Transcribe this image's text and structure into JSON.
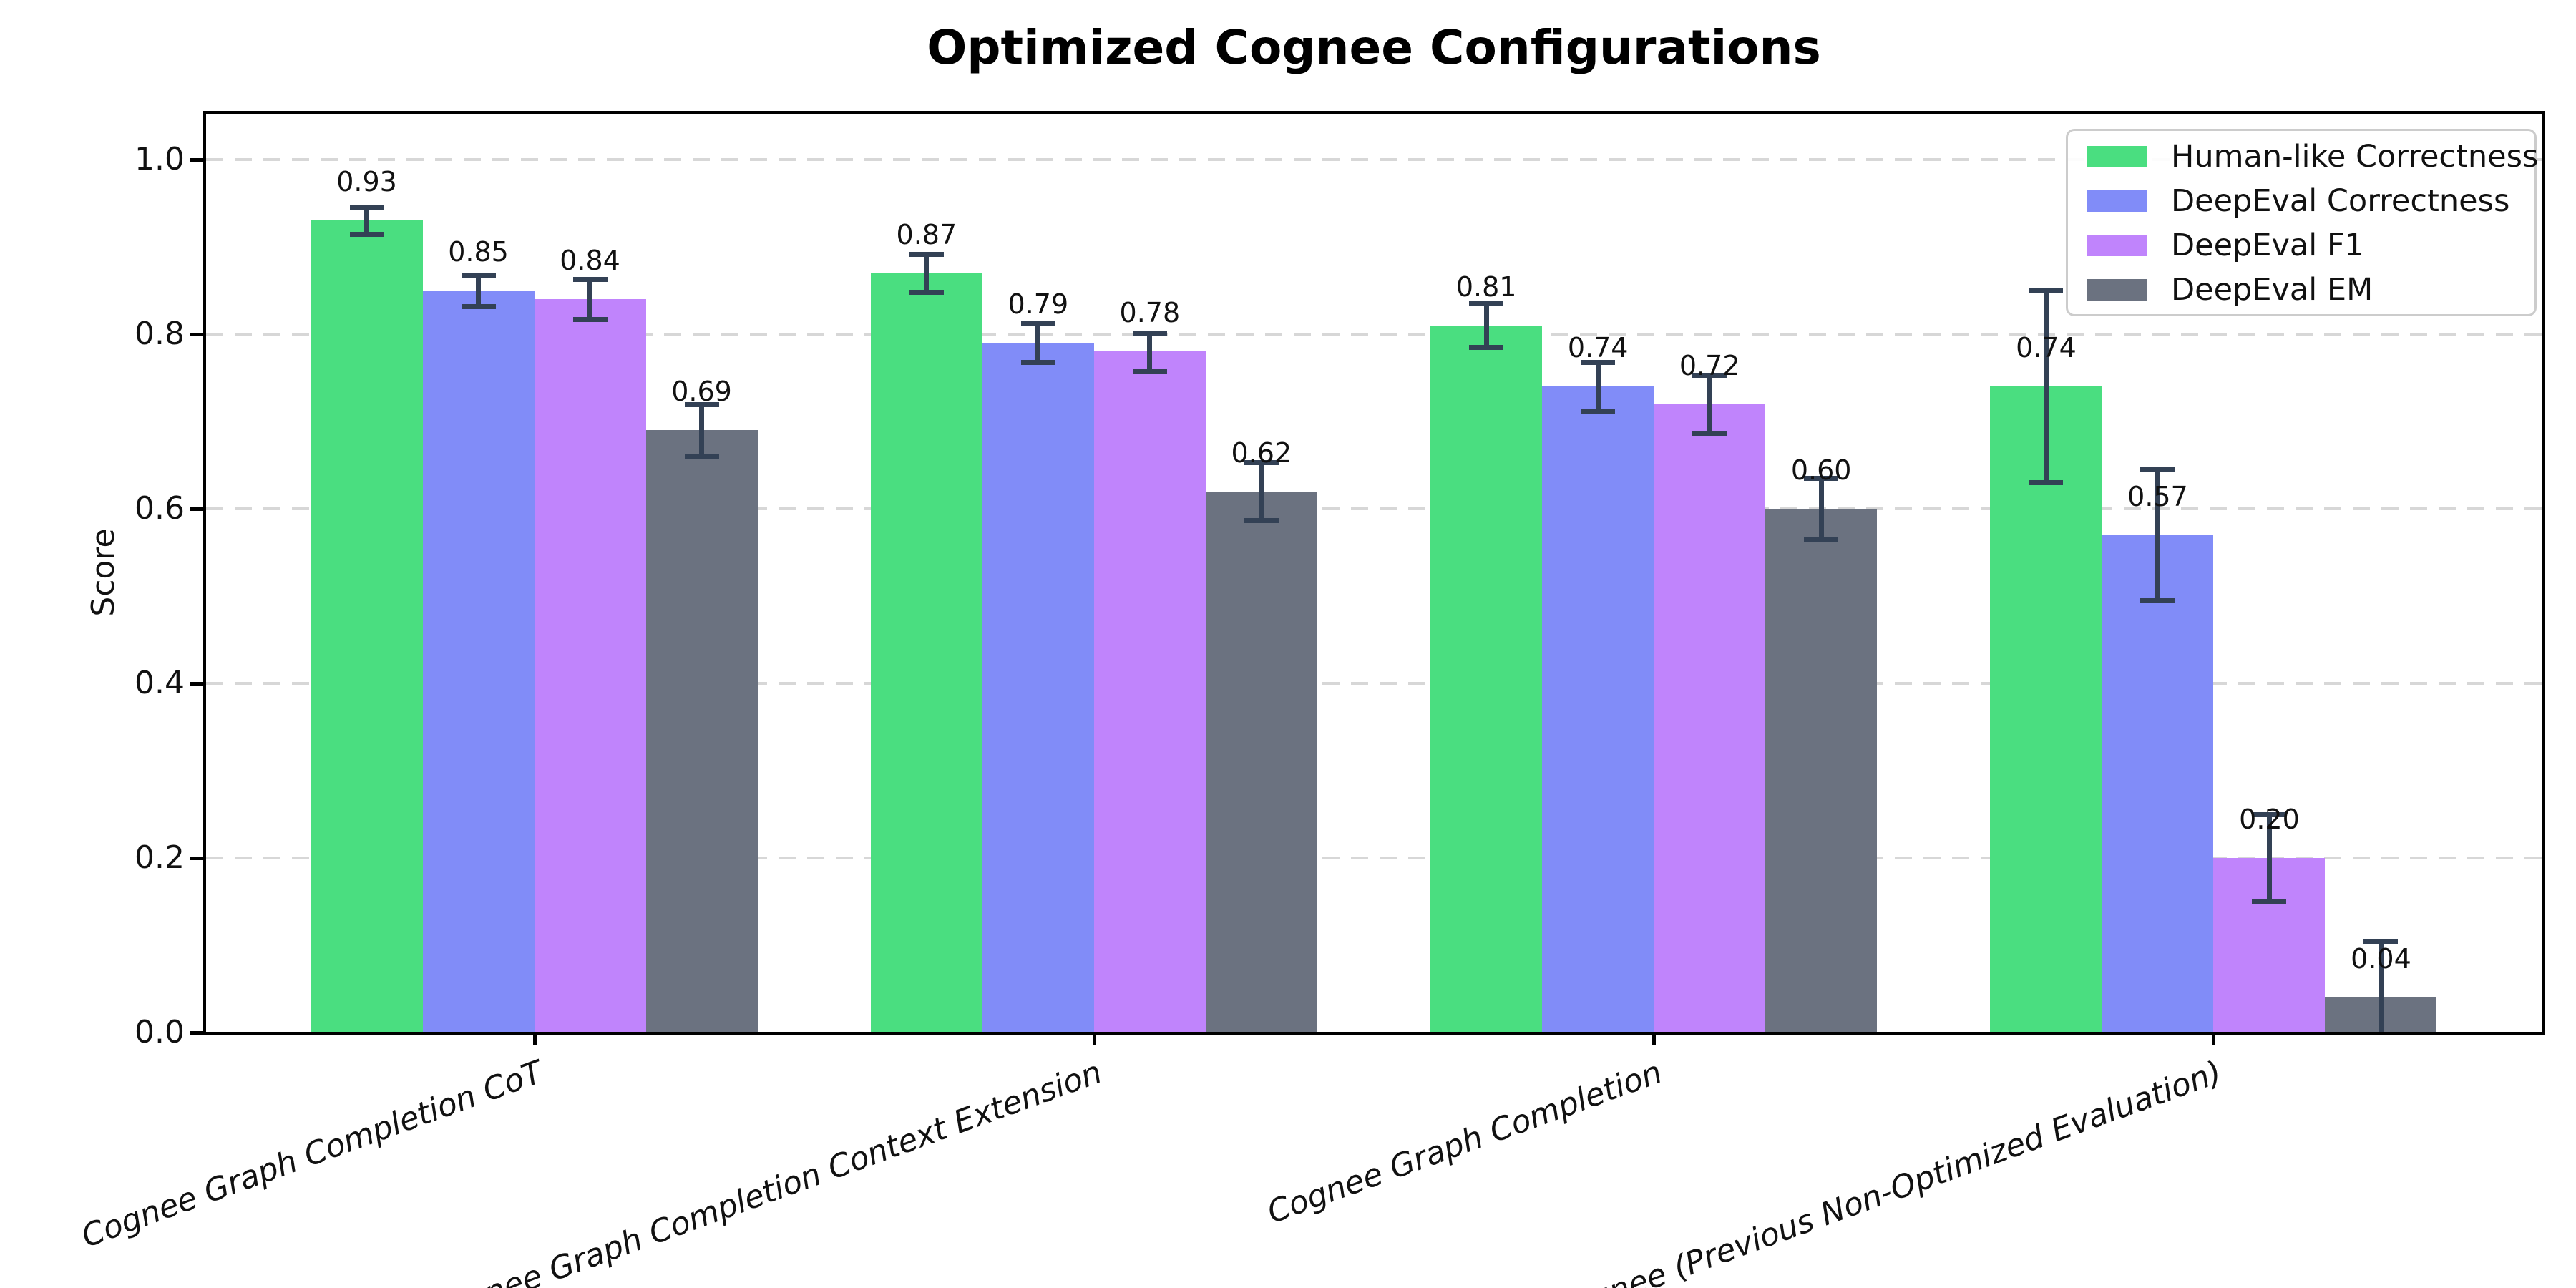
{
  "chart_data": {
    "type": "bar",
    "title": "Optimized Cognee Configurations",
    "ylabel": "Score",
    "xlabel": "",
    "categories": [
      "Cognee Graph Completion CoT",
      "Cognee Graph Completion Context Extension",
      "Cognee Graph Completion",
      "Cognee (Previous Non-Optimized Evaluation)"
    ],
    "series": [
      {
        "name": "Human-like Correctness",
        "color": "#4ade80",
        "values": [
          0.93,
          0.87,
          0.81,
          0.74
        ],
        "errors": [
          0.015,
          0.022,
          0.025,
          0.11
        ]
      },
      {
        "name": "DeepEval Correctness",
        "color": "#818cf8",
        "values": [
          0.85,
          0.79,
          0.74,
          0.57
        ],
        "errors": [
          0.018,
          0.022,
          0.028,
          0.075
        ]
      },
      {
        "name": "DeepEval F1",
        "color": "#c084fc",
        "values": [
          0.84,
          0.78,
          0.72,
          0.2
        ],
        "errors": [
          0.023,
          0.022,
          0.033,
          0.05
        ]
      },
      {
        "name": "DeepEval EM",
        "color": "#6b7280",
        "values": [
          0.69,
          0.62,
          0.6,
          0.04
        ],
        "errors": [
          0.03,
          0.033,
          0.035,
          0.065
        ]
      }
    ],
    "ylim": [
      0.0,
      1.05
    ],
    "yticks": [
      0.0,
      0.2,
      0.4,
      0.6,
      0.8,
      1.0
    ],
    "grid": "horizontal-dashed",
    "legend_position": "upper-right",
    "bar_labels_shown": true,
    "error_bar_color": "#334155",
    "grid_color": "#d7d7d7"
  }
}
